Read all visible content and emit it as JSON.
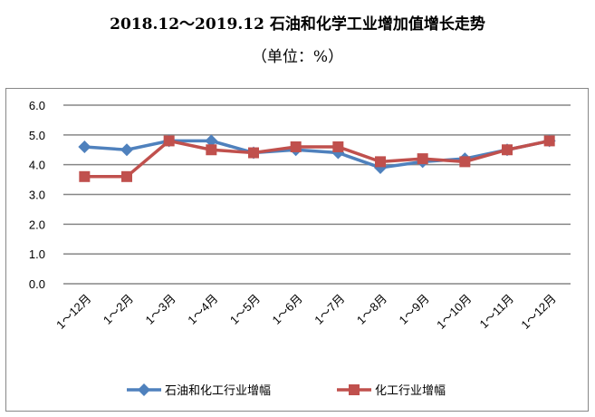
{
  "chart_data": {
    "type": "line",
    "title": "2018.12～2019.12 石油和化学工业增加值增长走势",
    "subtitle": "（单位：%）",
    "categories": [
      "1～12月",
      "1～2月",
      "1～3月",
      "1～4月",
      "1～5月",
      "1～6月",
      "1～7月",
      "1～8月",
      "1～9月",
      "1～10月",
      "1～11月",
      "1～12月"
    ],
    "ylim": [
      0,
      6
    ],
    "yticks": [
      "0.0",
      "1.0",
      "2.0",
      "3.0",
      "4.0",
      "5.0",
      "6.0"
    ],
    "grid": true,
    "legend_position": "bottom",
    "series": [
      {
        "name": "石油和化工行业增幅",
        "color": "#4F81BD",
        "marker": "diamond",
        "values": [
          4.6,
          4.5,
          4.8,
          4.8,
          4.4,
          4.5,
          4.4,
          3.9,
          4.1,
          4.2,
          4.5,
          4.8
        ]
      },
      {
        "name": "化工行业增幅",
        "color": "#C0504D",
        "marker": "square",
        "values": [
          3.6,
          3.6,
          4.8,
          4.5,
          4.4,
          4.6,
          4.6,
          4.1,
          4.2,
          4.1,
          4.5,
          4.8
        ]
      }
    ]
  }
}
